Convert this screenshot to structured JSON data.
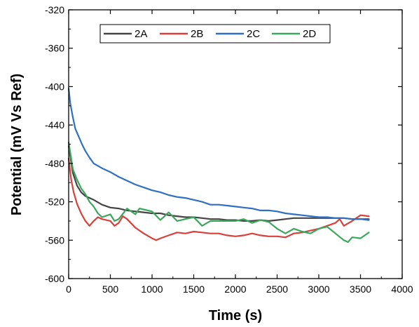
{
  "chart_data": {
    "type": "line",
    "title": "",
    "xlabel": "Time (s)",
    "ylabel": "Potential (mV Vs Ref)",
    "xlim": [
      0,
      4000
    ],
    "ylim": [
      -600,
      -320
    ],
    "xticks": [
      0,
      500,
      1000,
      1500,
      2000,
      2500,
      3000,
      3500,
      4000
    ],
    "yticks": [
      -320,
      -360,
      -400,
      -440,
      -480,
      -520,
      -560,
      -600
    ],
    "grid": false,
    "legend_placement": "top",
    "series": [
      {
        "name": "2A",
        "color": "#444444",
        "x": [
          0,
          50,
          100,
          150,
          200,
          300,
          400,
          500,
          600,
          700,
          800,
          900,
          1000,
          1100,
          1200,
          1300,
          1400,
          1500,
          1600,
          1700,
          1800,
          1900,
          2000,
          2100,
          2200,
          2300,
          2400,
          2500,
          2600,
          2700,
          2800,
          2900,
          3000,
          3100,
          3200,
          3300,
          3400,
          3500,
          3600
        ],
        "values": [
          -462,
          -490,
          -503,
          -510,
          -514,
          -518,
          -523,
          -526,
          -527,
          -529,
          -530,
          -531,
          -532,
          -532,
          -534,
          -535,
          -536,
          -536,
          -537,
          -538,
          -538,
          -539,
          -539,
          -540,
          -540,
          -539,
          -540,
          -539,
          -538,
          -537,
          -537,
          -537,
          -537,
          -537,
          -537,
          -537,
          -538,
          -538,
          -538
        ]
      },
      {
        "name": "2B",
        "color": "#d9403a",
        "x": [
          0,
          30,
          60,
          100,
          150,
          200,
          250,
          300,
          350,
          400,
          500,
          550,
          600,
          650,
          700,
          800,
          900,
          1000,
          1050,
          1100,
          1200,
          1300,
          1400,
          1500,
          1600,
          1700,
          1800,
          1900,
          2000,
          2100,
          2200,
          2300,
          2400,
          2500,
          2600,
          2700,
          2800,
          2900,
          3000,
          3100,
          3200,
          3250,
          3300,
          3400,
          3500,
          3600
        ],
        "values": [
          -475,
          -497,
          -510,
          -522,
          -532,
          -540,
          -545,
          -540,
          -536,
          -538,
          -540,
          -545,
          -542,
          -535,
          -538,
          -547,
          -553,
          -558,
          -560,
          -558,
          -555,
          -552,
          -553,
          -551,
          -552,
          -553,
          -553,
          -555,
          -556,
          -555,
          -553,
          -555,
          -556,
          -556,
          -557,
          -553,
          -552,
          -550,
          -548,
          -545,
          -542,
          -538,
          -545,
          -540,
          -534,
          -535
        ]
      },
      {
        "name": "2C",
        "color": "#2f6fc4",
        "x": [
          0,
          20,
          50,
          80,
          120,
          160,
          200,
          250,
          300,
          400,
          500,
          600,
          700,
          800,
          900,
          1000,
          1100,
          1200,
          1300,
          1400,
          1500,
          1600,
          1700,
          1800,
          1900,
          2000,
          2100,
          2200,
          2300,
          2400,
          2500,
          2600,
          2700,
          2800,
          2900,
          3000,
          3100,
          3200,
          3300,
          3400,
          3500,
          3600
        ],
        "values": [
          -402,
          -418,
          -432,
          -444,
          -452,
          -460,
          -467,
          -474,
          -480,
          -485,
          -489,
          -494,
          -498,
          -502,
          -505,
          -508,
          -510,
          -513,
          -515,
          -516,
          -518,
          -520,
          -523,
          -523,
          -524,
          -525,
          -526,
          -527,
          -529,
          -529,
          -530,
          -532,
          -533,
          -534,
          -535,
          -536,
          -536,
          -537,
          -537,
          -538,
          -538,
          -539
        ]
      },
      {
        "name": "2D",
        "color": "#3aa85a",
        "x": [
          0,
          50,
          100,
          150,
          200,
          250,
          300,
          350,
          400,
          500,
          550,
          600,
          700,
          800,
          850,
          900,
          1000,
          1100,
          1200,
          1300,
          1400,
          1500,
          1600,
          1700,
          1800,
          1900,
          2000,
          2100,
          2200,
          2300,
          2400,
          2500,
          2600,
          2700,
          2800,
          2900,
          3000,
          3100,
          3200,
          3300,
          3350,
          3400,
          3500,
          3600
        ],
        "values": [
          -458,
          -486,
          -497,
          -506,
          -512,
          -520,
          -525,
          -532,
          -536,
          -533,
          -540,
          -538,
          -527,
          -533,
          -527,
          -528,
          -530,
          -539,
          -531,
          -540,
          -538,
          -536,
          -545,
          -540,
          -540,
          -540,
          -540,
          -538,
          -542,
          -539,
          -541,
          -548,
          -553,
          -548,
          -551,
          -553,
          -548,
          -546,
          -553,
          -560,
          -562,
          -557,
          -558,
          -552
        ]
      }
    ]
  }
}
